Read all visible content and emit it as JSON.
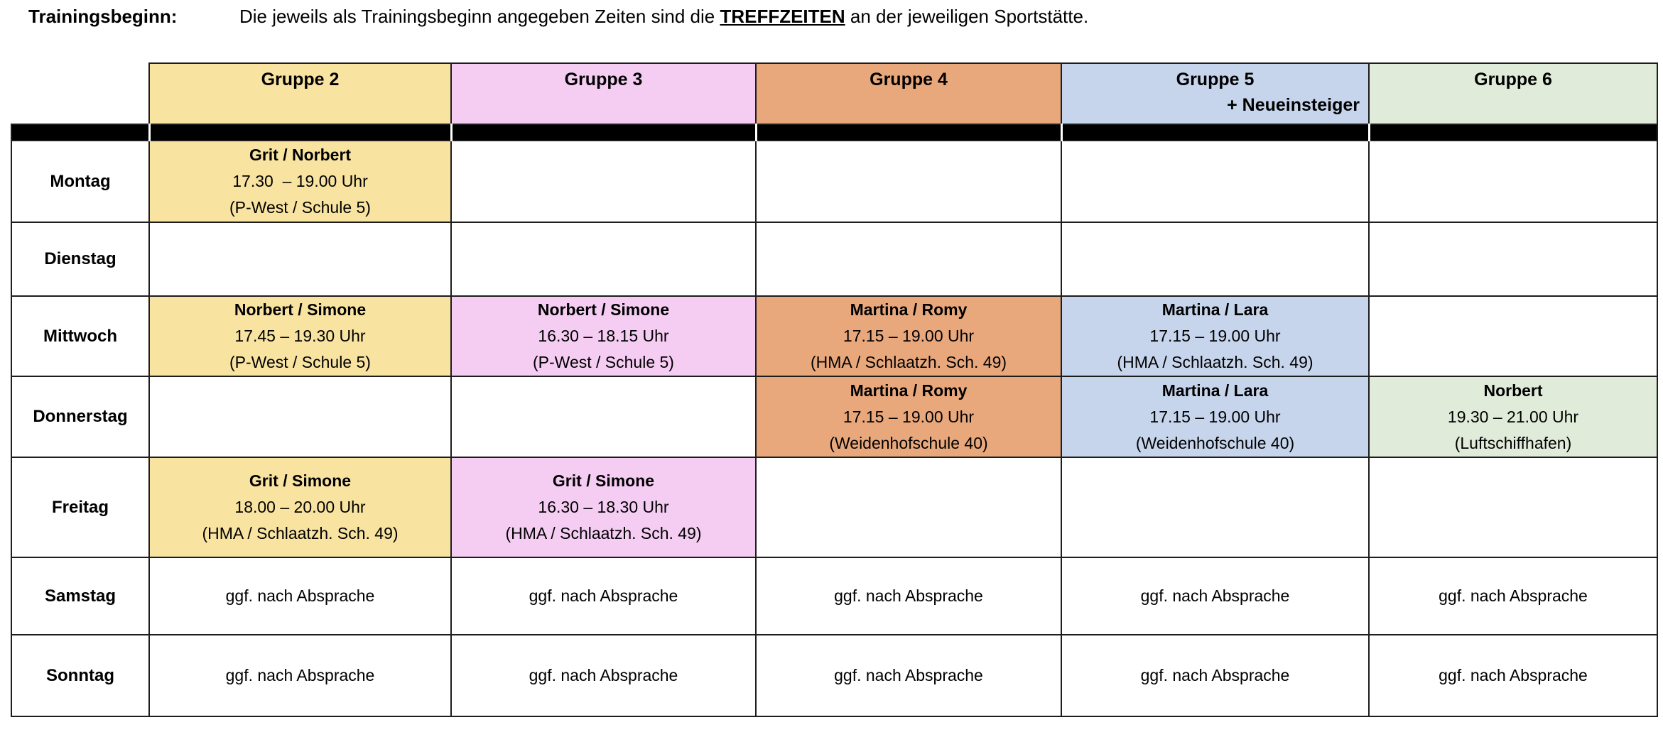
{
  "intro": {
    "label": "Trainingsbeginn:",
    "text_before": "Die jeweils als Trainingsbeginn angegeben Zeiten sind die ",
    "highlight": "TREFFZEITEN",
    "text_after": " an der jeweiligen Sportstätte."
  },
  "colors": {
    "gruppe2": "#F8E3A1",
    "gruppe3": "#F5CDF3",
    "gruppe4": "#E9A87C",
    "gruppe5": "#C6D5EC",
    "gruppe6": "#E0EBD9",
    "separator_band": "#000000",
    "border": "#1d1d1d"
  },
  "table": {
    "columns": [
      {
        "id": "gruppe2",
        "label": "Gruppe 2",
        "sublabel": "",
        "color": "#F8E3A1"
      },
      {
        "id": "gruppe3",
        "label": "Gruppe 3",
        "sublabel": "",
        "color": "#F5CDF3"
      },
      {
        "id": "gruppe4",
        "label": "Gruppe 4",
        "sublabel": "",
        "color": "#E9A87C"
      },
      {
        "id": "gruppe5",
        "label": "Gruppe 5",
        "sublabel": "+ Neueinsteiger",
        "color": "#C6D5EC"
      },
      {
        "id": "gruppe6",
        "label": "Gruppe 6",
        "sublabel": "",
        "color": "#E0EBD9"
      }
    ],
    "rows": [
      {
        "day": "Montag",
        "cells": [
          {
            "leaders": "Grit / Norbert",
            "time": "17.30  – 19.00 Uhr",
            "location": "(P-West / Schule 5)"
          },
          null,
          null,
          null,
          null
        ]
      },
      {
        "day": "Dienstag",
        "cells": [
          null,
          null,
          null,
          null,
          null
        ]
      },
      {
        "day": "Mittwoch",
        "cells": [
          {
            "leaders": "Norbert / Simone",
            "time": "17.45 – 19.30 Uhr",
            "location": "(P-West / Schule 5)"
          },
          {
            "leaders": "Norbert / Simone",
            "time": "16.30 – 18.15 Uhr",
            "location": "(P-West / Schule 5)"
          },
          {
            "leaders": "Martina / Romy",
            "time": "17.15 – 19.00 Uhr",
            "location": "(HMA / Schlaatzh. Sch. 49)"
          },
          {
            "leaders": "Martina / Lara",
            "time": "17.15 – 19.00 Uhr",
            "location": "(HMA / Schlaatzh. Sch. 49)"
          },
          null
        ]
      },
      {
        "day": "Donnerstag",
        "cells": [
          null,
          null,
          {
            "leaders": "Martina / Romy",
            "time": "17.15 – 19.00 Uhr",
            "location": "(Weidenhofschule 40)"
          },
          {
            "leaders": "Martina / Lara",
            "time": "17.15 – 19.00 Uhr",
            "location": "(Weidenhofschule 40)"
          },
          {
            "leaders": "Norbert",
            "time": "19.30 – 21.00 Uhr",
            "location": "(Luftschiffhafen)"
          }
        ]
      },
      {
        "day": "Freitag",
        "cells": [
          {
            "leaders": "Grit / Simone",
            "time": "18.00 – 20.00 Uhr",
            "location": "(HMA / Schlaatzh. Sch. 49)"
          },
          {
            "leaders": "Grit / Simone",
            "time": "16.30 – 18.30 Uhr",
            "location": "(HMA / Schlaatzh. Sch. 49)"
          },
          null,
          null,
          null
        ]
      },
      {
        "day": "Samstag",
        "cells": [
          {
            "note": "ggf. nach Absprache"
          },
          {
            "note": "ggf. nach Absprache"
          },
          {
            "note": "ggf. nach Absprache"
          },
          {
            "note": "ggf. nach Absprache"
          },
          {
            "note": "ggf. nach Absprache"
          }
        ]
      },
      {
        "day": "Sonntag",
        "cells": [
          {
            "note": "ggf. nach Absprache"
          },
          {
            "note": "ggf. nach Absprache"
          },
          {
            "note": "ggf. nach Absprache"
          },
          {
            "note": "ggf. nach Absprache"
          },
          {
            "note": "ggf. nach Absprache"
          }
        ]
      }
    ]
  }
}
